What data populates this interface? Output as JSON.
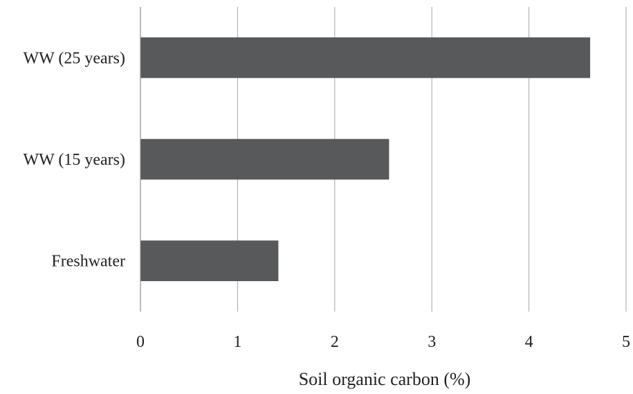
{
  "chart_data": {
    "type": "bar",
    "orientation": "horizontal",
    "categories": [
      "WW (25 years)",
      "WW (15 years)",
      "Freshwater"
    ],
    "values": [
      4.63,
      2.56,
      1.42
    ],
    "xlabel": "Soil organic carbon (%)",
    "ylabel": "",
    "xlim": [
      0,
      5
    ],
    "xticks": [
      "0",
      "1",
      "2",
      "3",
      "4",
      "5"
    ],
    "grid": "vertical",
    "legend": "none",
    "bar_color": "#58595b",
    "grid_color": "#a6a6a6"
  }
}
